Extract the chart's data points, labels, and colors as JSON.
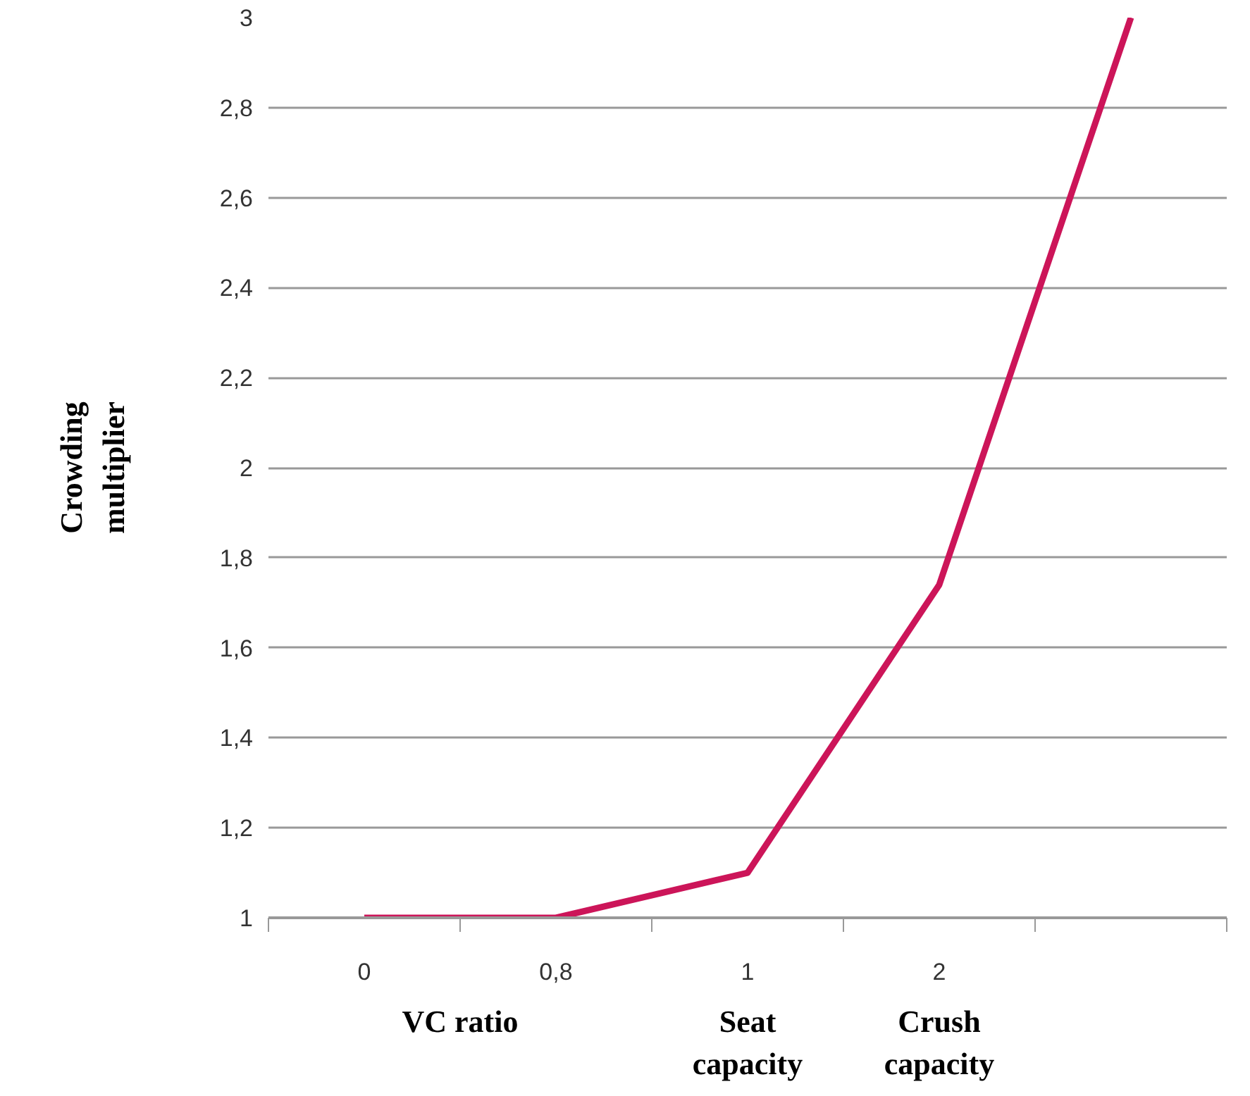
{
  "chart_data": {
    "type": "line",
    "ylabel": "Crowding multiplier",
    "xlabel": "VC ratio",
    "categories": [
      "0",
      "0,8",
      "1",
      "2",
      null
    ],
    "series": [
      {
        "color": "#cc1559",
        "values": [
          1,
          1,
          1.1,
          1.74,
          3
        ]
      }
    ],
    "ylim": [
      1,
      3
    ],
    "yticks": [
      {
        "value": 1,
        "label": "1"
      },
      {
        "value": 1.2,
        "label": "1,2"
      },
      {
        "value": 1.4,
        "label": "1,4"
      },
      {
        "value": 1.6,
        "label": "1,6"
      },
      {
        "value": 1.8,
        "label": "1,8"
      },
      {
        "value": 2,
        "label": "2"
      },
      {
        "value": 2.2,
        "label": "2,2"
      },
      {
        "value": 2.4,
        "label": "2,4"
      },
      {
        "value": 2.6,
        "label": "2,6"
      },
      {
        "value": 2.8,
        "label": "2,8"
      },
      {
        "value": 3,
        "label": "3"
      }
    ],
    "annotations": [
      "Seat capacity",
      "Crush capacity"
    ],
    "grid": "y",
    "marker": "none",
    "line_style": "solid"
  }
}
